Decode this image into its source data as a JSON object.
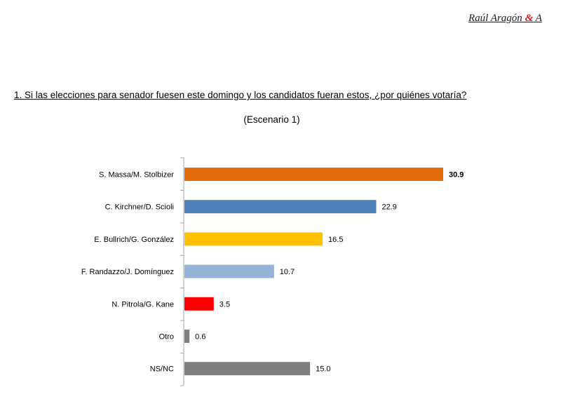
{
  "header": {
    "brand_left": "Raúl Aragón ",
    "brand_amp": "&",
    "brand_right": " A"
  },
  "question": "1. Si las elecciones para senador fuesen este domingo y los candidatos fueran estos, ¿por quiénes votaría?",
  "subtitle": "(Escenario 1)",
  "chart_data": {
    "type": "bar",
    "orientation": "horizontal",
    "title": "",
    "xlabel": "",
    "ylabel": "",
    "categories": [
      "S. Massa/M. Stolbizer",
      "C. Kirchner/D. Scioli",
      "E. Bullrich/G. González",
      "F. Randazzo/J. Domínguez",
      "N. Pitrola/G. Kane",
      "Otro",
      "NS/NC"
    ],
    "values": [
      30.9,
      22.9,
      16.5,
      10.7,
      3.5,
      0.6,
      15.0
    ],
    "value_labels": [
      "30.9",
      "22.9",
      "16.5",
      "10.7",
      "3.5",
      "0.6",
      "15.0"
    ],
    "bar_colors": [
      "#e36c0a",
      "#4f81bd",
      "#ffc000",
      "#95b3d7",
      "#ff0000",
      "#7f7f7f",
      "#7f7f7f"
    ],
    "bold_labels": [
      true,
      false,
      false,
      false,
      false,
      false,
      false
    ],
    "xlim": [
      0,
      33
    ],
    "grid": false,
    "legend": "none"
  }
}
